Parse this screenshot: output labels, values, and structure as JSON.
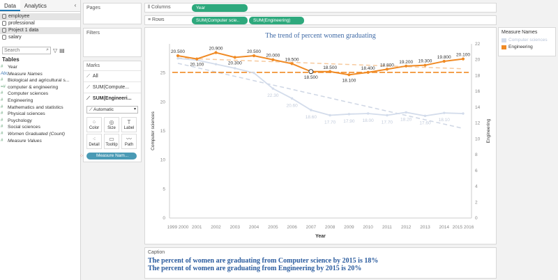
{
  "left_pane": {
    "tabs": [
      "Data",
      "Analytics"
    ],
    "collapse_glyph": "‹",
    "datasources": [
      "employee",
      "professional",
      "Project 1 data",
      "salary"
    ],
    "search_placeholder": "Search",
    "tables_title": "Tables",
    "fields": [
      {
        "type": "#",
        "label": "Year",
        "italic": false
      },
      {
        "type": "Abc",
        "label": "Measure Names",
        "italic": true
      },
      {
        "type": "#",
        "label": "Biological and agricultural s...",
        "italic": false
      },
      {
        "type": "=#",
        "label": "computer & engineering",
        "italic": false
      },
      {
        "type": "#",
        "label": "Computer sciences",
        "italic": false
      },
      {
        "type": "#",
        "label": "Engineering",
        "italic": false
      },
      {
        "type": "#",
        "label": "Mathematics and statistics",
        "italic": false
      },
      {
        "type": "#",
        "label": "Physical sciences",
        "italic": false
      },
      {
        "type": "#",
        "label": "Psychology",
        "italic": false
      },
      {
        "type": "#",
        "label": "Social sciences",
        "italic": false
      },
      {
        "type": "#",
        "label": "Women Graduated (Count)",
        "italic": true
      },
      {
        "type": "#",
        "label": "Measure Values",
        "italic": true
      }
    ]
  },
  "cards": {
    "pages": "Pages",
    "filters": "Filters",
    "marks": "Marks",
    "marks_rows": [
      "All",
      "SUM(Compute...",
      "SUM(Engineeri..."
    ],
    "mark_type": "Automatic",
    "mark_buttons": [
      {
        "glyph": "⁘",
        "label": "Color"
      },
      {
        "glyph": "◎",
        "label": "Size"
      },
      {
        "glyph": "T",
        "label": "Label"
      },
      {
        "glyph": "⁖",
        "label": "Detail"
      },
      {
        "glyph": "▭",
        "label": "Tooltip"
      },
      {
        "glyph": "〰",
        "label": "Path"
      }
    ],
    "measure_pill": "Measure Nam..."
  },
  "shelves": {
    "columns_label": "Columns",
    "rows_label": "Rows",
    "columns_pill": "Year",
    "rows_pills": [
      "SUM(Computer scie..",
      "SUM(Engineering)"
    ]
  },
  "legend": {
    "title": "Measure Names",
    "items": [
      {
        "label": "Computer sciences",
        "color": "#d3dceb"
      },
      {
        "label": "Engineering",
        "color": "#f08a24"
      }
    ]
  },
  "caption": {
    "title": "Caption",
    "lines": [
      "The percent of women are graduating from Computer science by 2015 is 18%",
      "The percent of women are graduating from  Engineering by 2015 is 20%"
    ]
  },
  "chart_data": {
    "type": "line",
    "title": "The trend of percent women graduating",
    "xlabel": "Year",
    "ylabel_left": "Computer sciences",
    "ylabel_right": "Engineering",
    "x": [
      "1999 2000",
      "2001",
      "2002",
      "2003",
      "2004",
      "2005",
      "2006",
      "2007",
      "2008",
      "2009",
      "2010",
      "2011",
      "2012",
      "2013",
      "2014",
      "2015 2016"
    ],
    "ylim_left": [
      0,
      30
    ],
    "yticks_left": [
      0,
      5,
      10,
      15,
      20,
      25
    ],
    "ylim_right": [
      0,
      22
    ],
    "yticks_right": [
      0,
      2,
      4,
      6,
      8,
      10,
      12,
      14,
      16,
      18,
      20,
      22
    ],
    "series": [
      {
        "name": "Computer sciences",
        "axis": "left",
        "color": "#d3dceb",
        "values": [
          27.5,
          27.2,
          26.5,
          25.8,
          25.0,
          22.3,
          20.6,
          18.6,
          17.7,
          17.9,
          18.0,
          17.7,
          18.2,
          17.6,
          18.1,
          18.0
        ],
        "labels": [
          "",
          "",
          "",
          "",
          "",
          "22.30",
          "20.60",
          "18.60",
          "17.70",
          "17.90",
          "18.00",
          "17.70",
          "18.20",
          "17.60",
          "18.10",
          ""
        ]
      },
      {
        "name": "Engineering",
        "axis": "right",
        "color": "#f08a24",
        "values": [
          20.5,
          20.1,
          20.9,
          20.3,
          20.5,
          20.0,
          19.5,
          18.5,
          18.5,
          18.1,
          18.4,
          18.8,
          19.2,
          19.3,
          19.8,
          20.1
        ],
        "labels": [
          "20.500",
          "20.100",
          "20.900",
          "20.300",
          "20.500",
          "20.000",
          "19.500",
          "18.500",
          "18.500",
          "18.100",
          "18.400",
          "18.800",
          "19.200",
          "19.300",
          "19.800",
          "20.100"
        ]
      }
    ],
    "reference_line_right": 18.4,
    "trend_lines": true
  }
}
